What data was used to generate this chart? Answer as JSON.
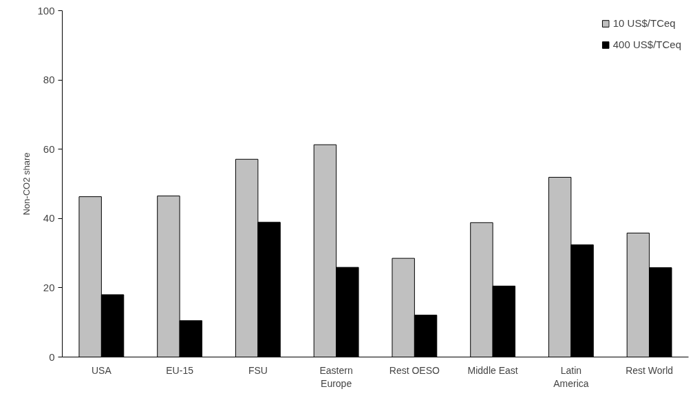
{
  "chart_data": {
    "type": "bar",
    "ylabel": "Non-CO2 share",
    "categories": [
      "USA",
      "EU-15",
      "FSU",
      "Eastern\nEurope",
      "Rest OESO",
      "Middle East",
      "Latin\nAmerica",
      "Rest World"
    ],
    "series": [
      {
        "name": "10 US$/TCeq",
        "color": "#c0c0c0",
        "values": [
          46.3,
          46.5,
          57.1,
          61.3,
          28.5,
          38.8,
          51.9,
          35.8
        ]
      },
      {
        "name": "400 US$/TCeq",
        "color": "#000000",
        "values": [
          18.0,
          10.5,
          38.9,
          25.9,
          12.1,
          20.5,
          32.4,
          25.8
        ]
      }
    ],
    "ylim": [
      0,
      100
    ],
    "yticks": [
      0,
      20,
      40,
      60,
      80,
      100
    ],
    "grid": false,
    "legend": "top right"
  }
}
